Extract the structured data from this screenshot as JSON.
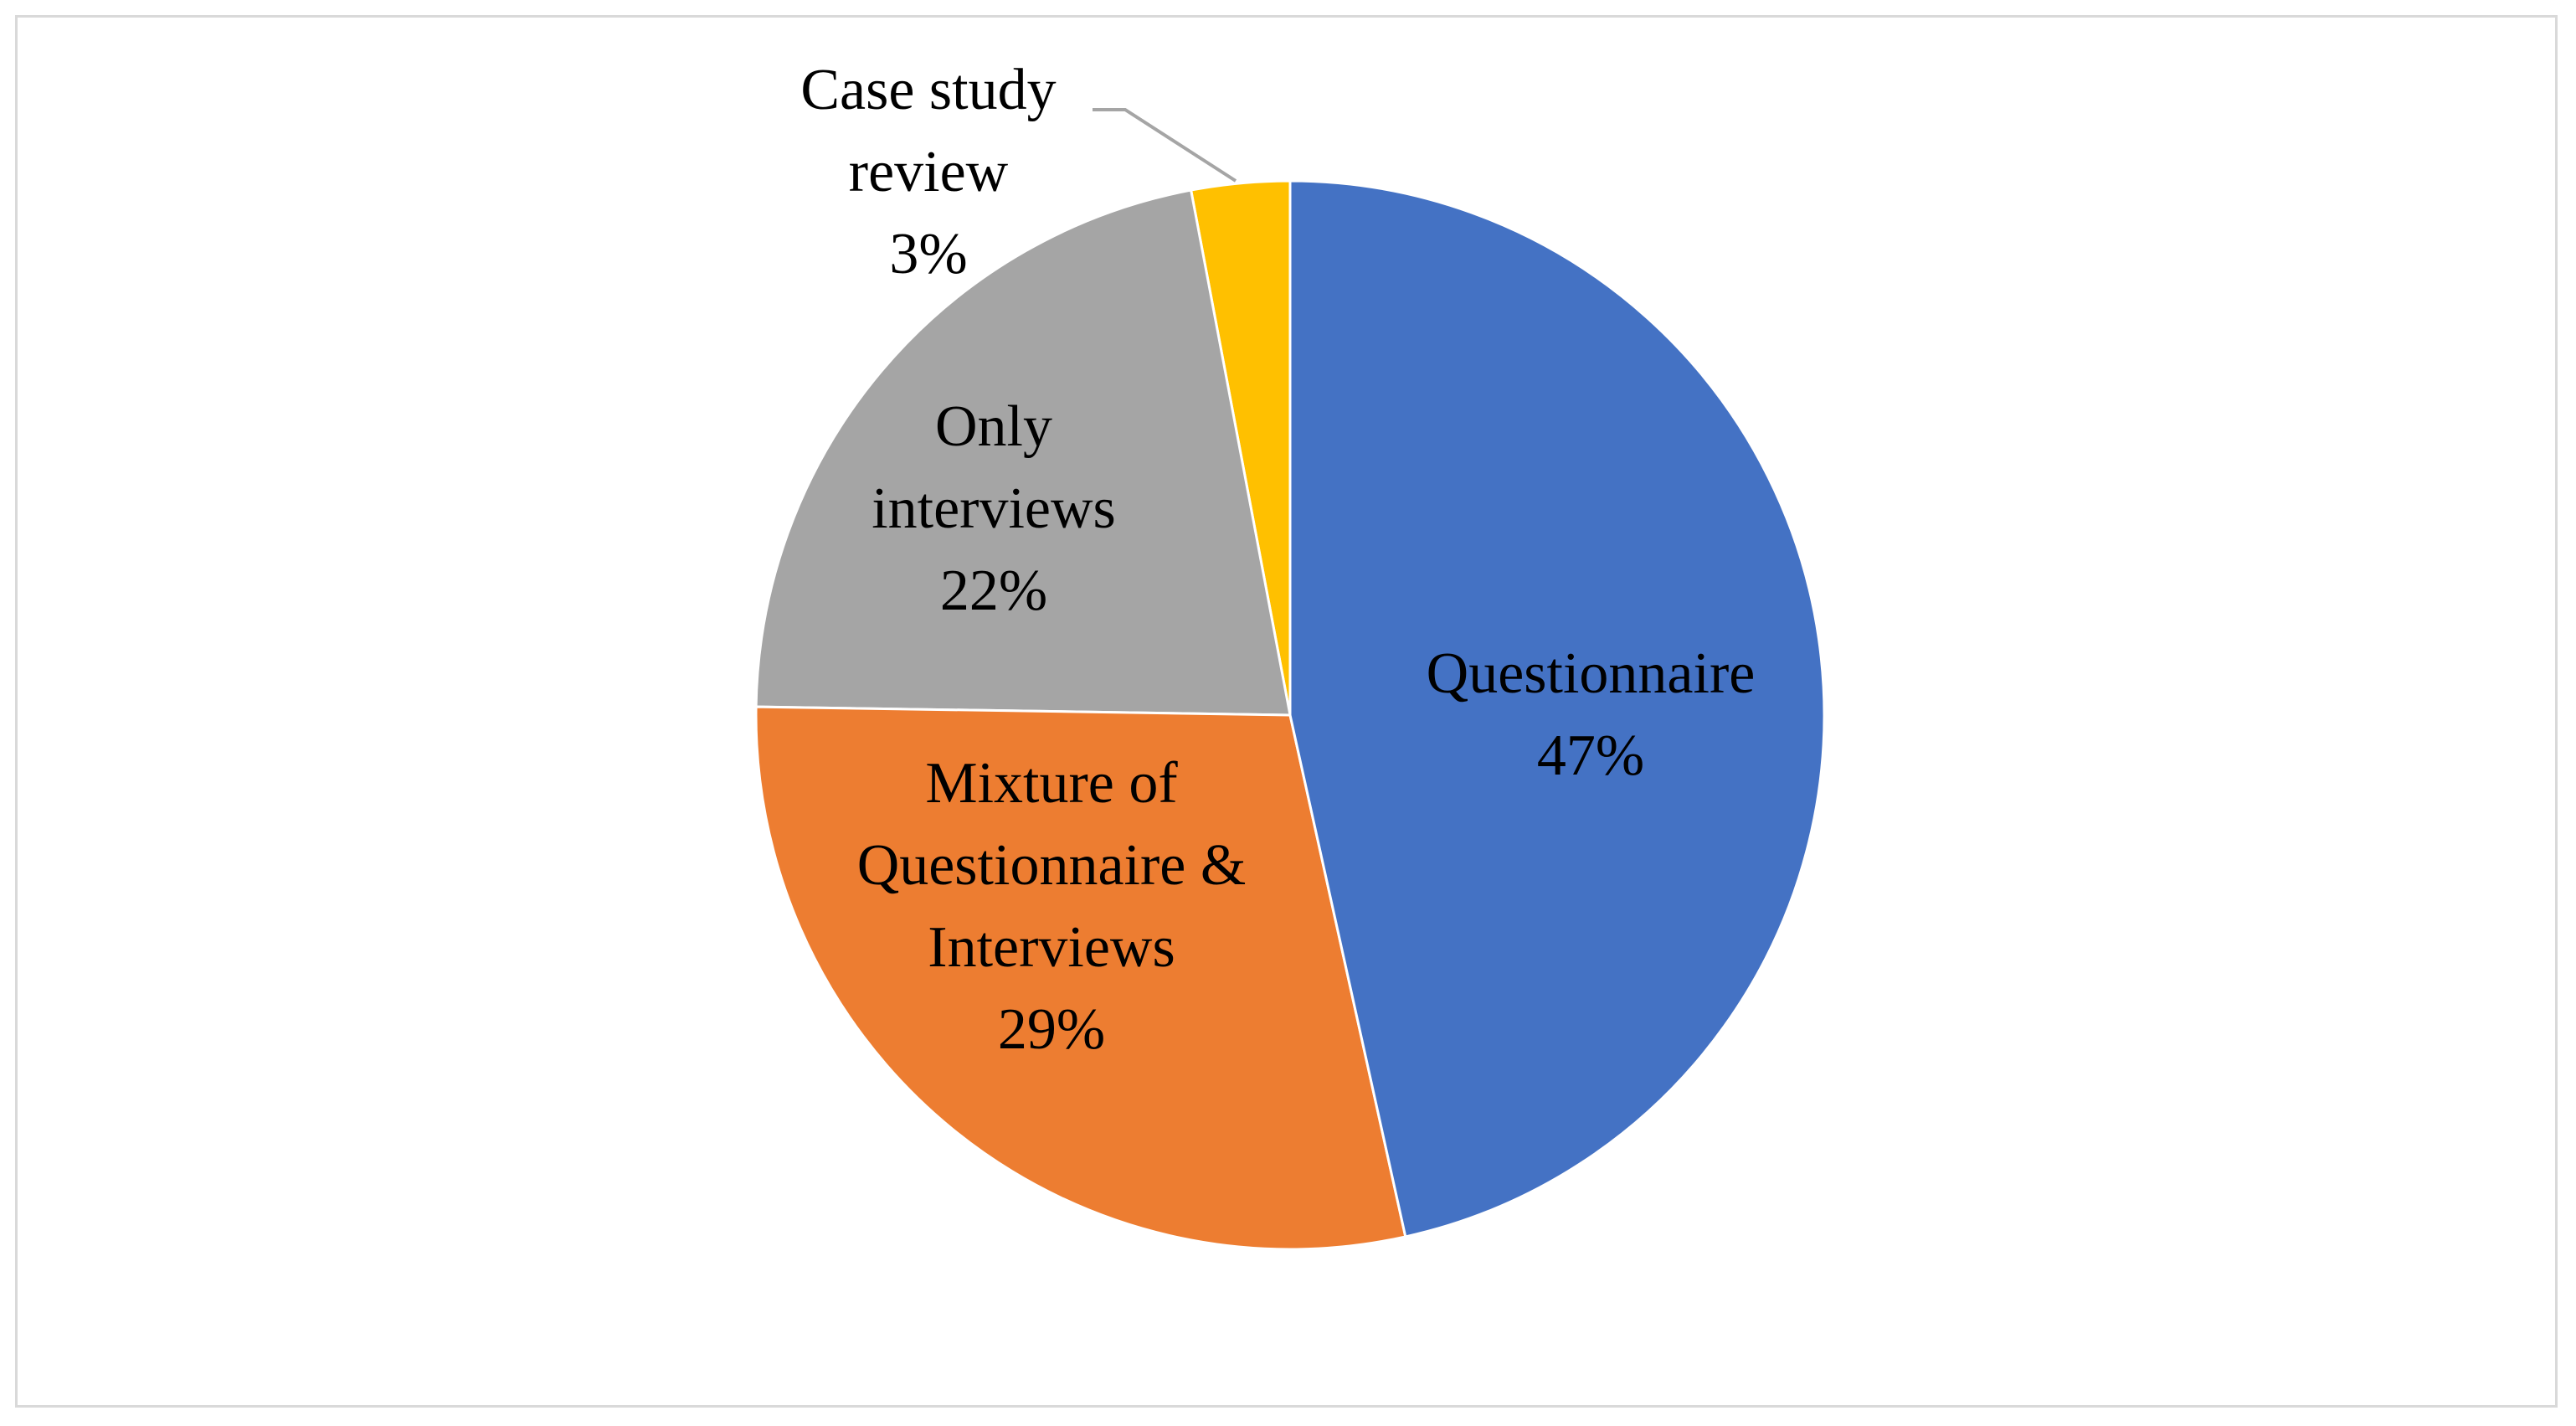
{
  "chart_data": {
    "type": "pie",
    "categories": [
      "Questionnaire",
      "Mixture of Questionnaire & Interviews",
      "Only interviews",
      "Case study review"
    ],
    "values": [
      47,
      29,
      22,
      3
    ],
    "value_labels": [
      "47%",
      "29%",
      "22%",
      "3%"
    ],
    "colors": [
      "#4472c4",
      "#ed7d31",
      "#a5a5a5",
      "#ffc000"
    ]
  }
}
